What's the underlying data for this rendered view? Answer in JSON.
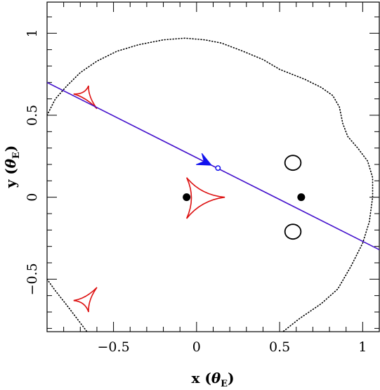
{
  "chart_data": {
    "type": "scatter",
    "xlabel": "x (θE)",
    "ylabel": "y (θE)",
    "xlabel_main": "x",
    "ylabel_main": "y",
    "label_theta": "θ",
    "label_sub": "E",
    "xlim": [
      -0.9,
      1.1
    ],
    "ylim": [
      -0.82,
      1.19
    ],
    "x_ticks": [
      -0.5,
      0,
      0.5,
      1
    ],
    "y_ticks": [
      -0.5,
      0,
      0.5,
      1
    ],
    "x_tick_labels": [
      "−0.5",
      "0",
      "0.5",
      "1"
    ],
    "y_tick_labels": [
      "−0.5",
      "0",
      "0.5",
      "1"
    ],
    "grid": false,
    "colors": {
      "caustic": "#dd1111",
      "trajectory": "#4411cc",
      "arrow": "#1111ee",
      "lens": "#000000",
      "critical": "#000000"
    },
    "lenses": [
      {
        "x": -0.06,
        "y": 0.0
      },
      {
        "x": 0.63,
        "y": 0.0
      }
    ],
    "source_trajectory": {
      "x1": -0.9,
      "y1": 0.7,
      "x2": 1.1,
      "y2": -0.32
    },
    "source_marker": {
      "x": 0.095,
      "y": 0.195
    },
    "arrow_tip": {
      "x": 0.09,
      "y": 0.195
    },
    "arrow_direction": {
      "dx": 1,
      "dy": -0.51
    },
    "caustics": [
      {
        "name": "central",
        "points": [
          [
            0.17,
            0.0
          ],
          [
            -0.06,
            0.12
          ],
          [
            -0.06,
            -0.13
          ]
        ]
      },
      {
        "name": "upper-left",
        "points": [
          [
            -0.6,
            0.54
          ],
          [
            -0.74,
            0.63
          ],
          [
            -0.65,
            0.68
          ]
        ]
      },
      {
        "name": "lower-left",
        "points": [
          [
            -0.6,
            -0.55
          ],
          [
            -0.74,
            -0.63
          ],
          [
            -0.65,
            -0.7
          ]
        ]
      }
    ],
    "small_critical_curves": [
      {
        "x": 0.58,
        "y": 0.21,
        "rx": 0.048,
        "ry": 0.045
      },
      {
        "x": 0.58,
        "y": -0.21,
        "rx": 0.048,
        "ry": 0.045
      }
    ],
    "critical_curve_points": [
      [
        -0.9,
        0.5
      ],
      [
        -0.85,
        0.6
      ],
      [
        -0.78,
        0.68
      ],
      [
        -0.7,
        0.76
      ],
      [
        -0.6,
        0.83
      ],
      [
        -0.48,
        0.89
      ],
      [
        -0.35,
        0.93
      ],
      [
        -0.2,
        0.96
      ],
      [
        -0.07,
        0.97
      ],
      [
        0.05,
        0.96
      ],
      [
        0.15,
        0.94
      ],
      [
        0.28,
        0.89
      ],
      [
        0.4,
        0.84
      ],
      [
        0.5,
        0.78
      ],
      [
        0.65,
        0.72
      ],
      [
        0.75,
        0.67
      ],
      [
        0.82,
        0.62
      ],
      [
        0.86,
        0.55
      ],
      [
        0.88,
        0.45
      ],
      [
        0.91,
        0.37
      ],
      [
        0.97,
        0.3
      ],
      [
        1.03,
        0.22
      ],
      [
        1.06,
        0.12
      ],
      [
        1.06,
        0.0
      ],
      [
        1.04,
        -0.15
      ],
      [
        1.0,
        -0.28
      ],
      [
        0.93,
        -0.42
      ],
      [
        0.85,
        -0.56
      ],
      [
        0.75,
        -0.65
      ],
      [
        0.62,
        -0.74
      ],
      [
        0.52,
        -0.82
      ]
    ],
    "critical_curve_lower_left": [
      [
        -0.9,
        -0.5
      ],
      [
        -0.85,
        -0.57
      ],
      [
        -0.78,
        -0.66
      ],
      [
        -0.72,
        -0.74
      ],
      [
        -0.66,
        -0.82
      ]
    ]
  }
}
